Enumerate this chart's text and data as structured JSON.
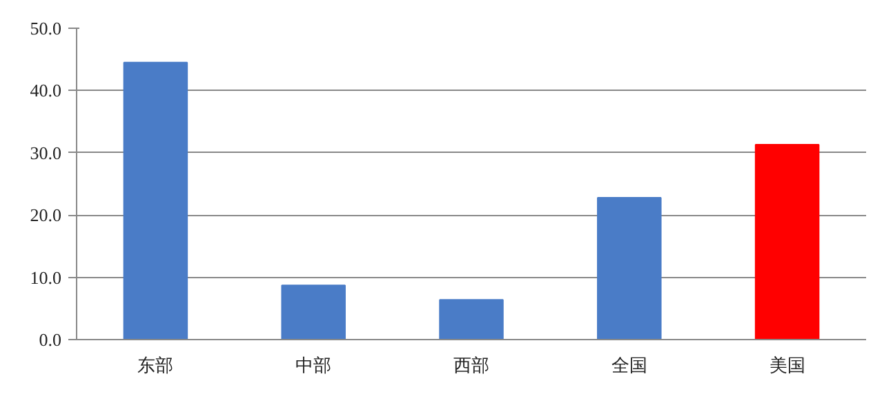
{
  "chart_data": {
    "type": "bar",
    "categories": [
      "东部",
      "中部",
      "西部",
      "全国",
      "美国"
    ],
    "values": [
      44.5,
      8.7,
      6.4,
      22.8,
      31.3
    ],
    "colors": [
      "#4a7cc7",
      "#4a7cc7",
      "#4a7cc7",
      "#4a7cc7",
      "#ff0000"
    ],
    "ylim": [
      0,
      50
    ],
    "yticks": [
      {
        "value": 0,
        "label": "0.0"
      },
      {
        "value": 10,
        "label": "10.0"
      },
      {
        "value": 20,
        "label": "20.0"
      },
      {
        "value": 30,
        "label": "30.0"
      },
      {
        "value": 40,
        "label": "40.0"
      },
      {
        "value": 50,
        "label": "50.0"
      }
    ],
    "grid": "y"
  }
}
